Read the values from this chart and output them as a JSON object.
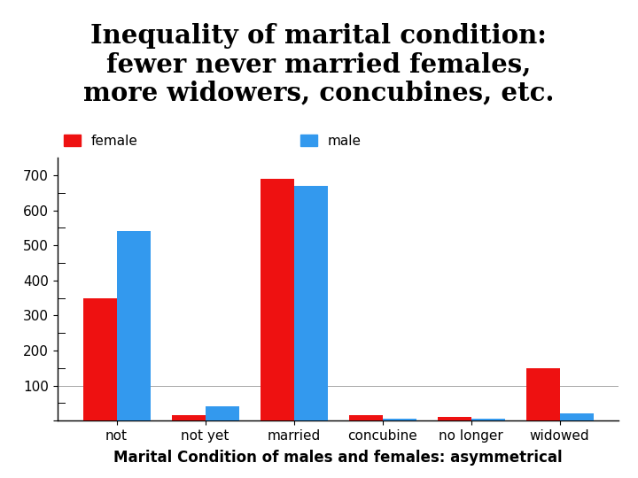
{
  "categories": [
    "not",
    "not yet",
    "married",
    "concubine",
    "no longer",
    "widowed"
  ],
  "female": [
    350,
    15,
    690,
    15,
    10,
    150
  ],
  "male": [
    540,
    40,
    670,
    5,
    5,
    20
  ],
  "female_color": "#ee1111",
  "male_color": "#3399ee",
  "title_line1": "Inequality of marital condition:",
  "title_line2": "fewer never married females,",
  "title_line3": "more widowers, concubines, etc.",
  "title_bg_color": "#f5c842",
  "xlabel": "Marital Condition of males and females: asymmetrical",
  "ylim": [
    0,
    750
  ],
  "yticks": [
    0,
    100,
    200,
    300,
    400,
    500,
    600,
    700
  ],
  "minor_yticks": [
    50,
    150,
    250,
    350,
    450,
    550,
    650
  ],
  "legend_female": "female",
  "legend_male": "male",
  "bar_width": 0.38,
  "figure_bg": "#ffffff",
  "title_fontsize": 21,
  "xlabel_fontsize": 12,
  "tick_fontsize": 11,
  "legend_fontsize": 11
}
